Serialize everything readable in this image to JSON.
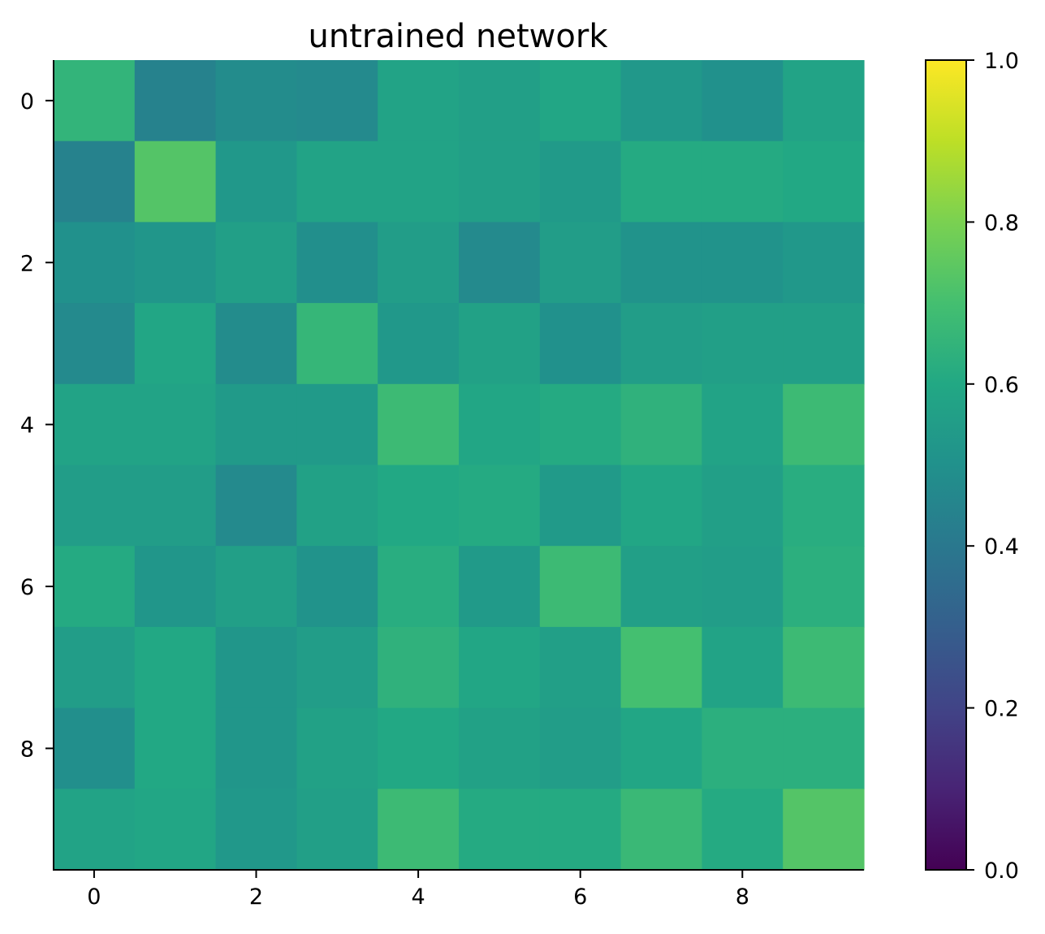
{
  "chart_data": {
    "type": "heatmap",
    "title": "untrained network",
    "xlabel": "",
    "ylabel": "",
    "colormap": "viridis",
    "x_ticks": [
      "0",
      "2",
      "4",
      "6",
      "8"
    ],
    "y_ticks": [
      "0",
      "2",
      "4",
      "6",
      "8"
    ],
    "x_range": [
      -0.5,
      9.5
    ],
    "y_range": [
      -0.5,
      9.5
    ],
    "colorbar": {
      "range": [
        0.0,
        1.0
      ],
      "ticks": [
        "0.0",
        "0.2",
        "0.4",
        "0.6",
        "0.8",
        "1.0"
      ]
    },
    "values": [
      [
        0.65,
        0.44,
        0.48,
        0.47,
        0.58,
        0.56,
        0.59,
        0.53,
        0.5,
        0.58
      ],
      [
        0.44,
        0.73,
        0.53,
        0.58,
        0.58,
        0.56,
        0.54,
        0.61,
        0.61,
        0.6
      ],
      [
        0.5,
        0.52,
        0.56,
        0.49,
        0.55,
        0.47,
        0.55,
        0.51,
        0.51,
        0.53
      ],
      [
        0.47,
        0.59,
        0.48,
        0.66,
        0.53,
        0.57,
        0.5,
        0.55,
        0.56,
        0.56
      ],
      [
        0.58,
        0.58,
        0.54,
        0.54,
        0.68,
        0.59,
        0.61,
        0.64,
        0.58,
        0.68
      ],
      [
        0.55,
        0.55,
        0.47,
        0.57,
        0.6,
        0.61,
        0.54,
        0.59,
        0.56,
        0.62
      ],
      [
        0.61,
        0.52,
        0.56,
        0.51,
        0.62,
        0.54,
        0.68,
        0.56,
        0.55,
        0.63
      ],
      [
        0.55,
        0.6,
        0.52,
        0.55,
        0.64,
        0.59,
        0.56,
        0.7,
        0.58,
        0.68
      ],
      [
        0.49,
        0.6,
        0.52,
        0.57,
        0.6,
        0.57,
        0.55,
        0.59,
        0.63,
        0.63
      ],
      [
        0.58,
        0.59,
        0.53,
        0.56,
        0.68,
        0.61,
        0.61,
        0.67,
        0.61,
        0.73
      ]
    ]
  }
}
